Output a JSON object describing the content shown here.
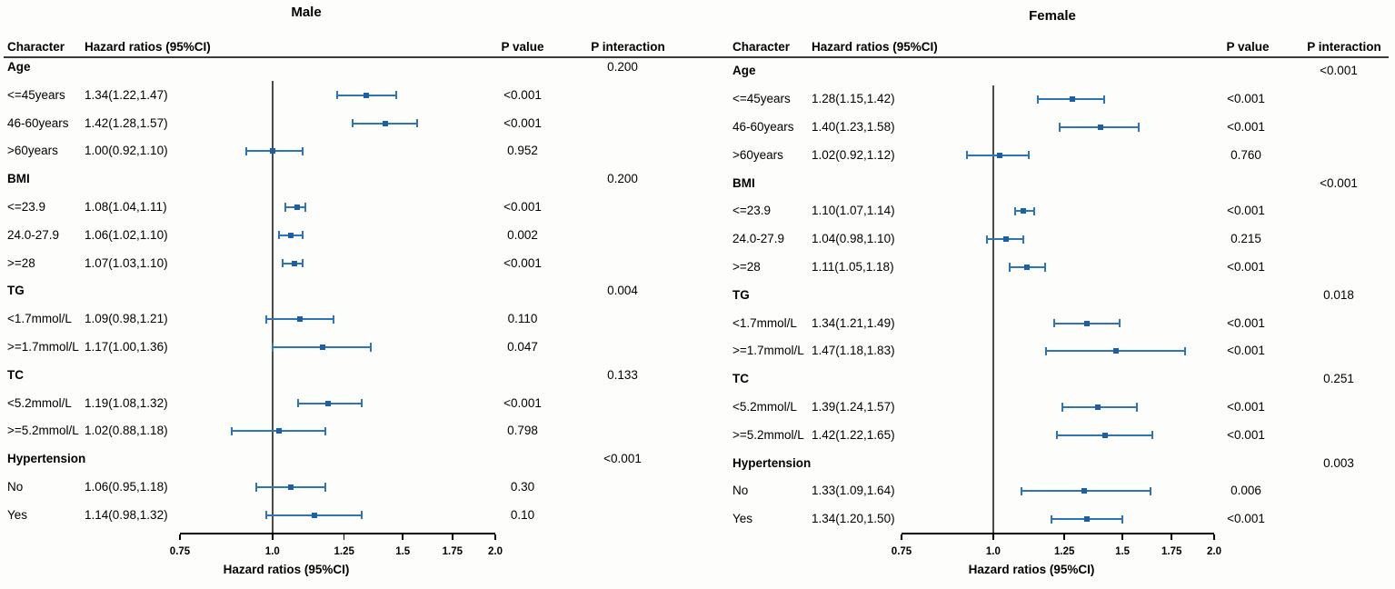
{
  "colors": {
    "bar": "#2e75b8",
    "marker": "#1c5fa8",
    "axis": "#000000",
    "refline": "#4a4a4a",
    "header_rule": "#3a3a3a",
    "text": "#000000",
    "background": "#fdfdfb"
  },
  "chart_data": [
    {
      "type": "forest",
      "panel": "left",
      "title": "Male",
      "columns": {
        "character": "Character",
        "hazard_ratios": "Hazard ratios (95%CI)",
        "p_value": "P value",
        "p_interaction": "P interaction"
      },
      "xlabel": "Hazard ratios (95%CI)",
      "xscale": "log",
      "xlim": [
        0.75,
        2.0
      ],
      "xticks": [
        "0.75",
        "1.0",
        "1.25",
        "1.5",
        "1.75",
        "2.0"
      ],
      "xtick_values": [
        0.75,
        1.0,
        1.25,
        1.5,
        1.75,
        2.0
      ],
      "refline": 1.0,
      "rows": [
        {
          "type": "group",
          "label": "Age",
          "p_interaction": "0.200"
        },
        {
          "type": "item",
          "label": "<=45years",
          "hr_text": "1.34(1.22,1.47)",
          "est": 1.34,
          "lo": 1.22,
          "hi": 1.47,
          "p_value": "<0.001"
        },
        {
          "type": "item",
          "label": "46-60years",
          "hr_text": "1.42(1.28,1.57)",
          "est": 1.42,
          "lo": 1.28,
          "hi": 1.57,
          "p_value": "<0.001"
        },
        {
          "type": "item",
          "label": ">60years",
          "hr_text": "1.00(0.92,1.10)",
          "est": 1.0,
          "lo": 0.92,
          "hi": 1.1,
          "p_value": "0.952"
        },
        {
          "type": "group",
          "label": "BMI",
          "p_interaction": "0.200"
        },
        {
          "type": "item",
          "label": "<=23.9",
          "hr_text": "1.08(1.04,1.11)",
          "est": 1.08,
          "lo": 1.04,
          "hi": 1.11,
          "p_value": "<0.001"
        },
        {
          "type": "item",
          "label": "24.0-27.9",
          "hr_text": "1.06(1.02,1.10)",
          "est": 1.06,
          "lo": 1.02,
          "hi": 1.1,
          "p_value": "0.002"
        },
        {
          "type": "item",
          "label": ">=28",
          "hr_text": "1.07(1.03,1.10)",
          "est": 1.07,
          "lo": 1.03,
          "hi": 1.1,
          "p_value": "<0.001"
        },
        {
          "type": "group",
          "label": "TG",
          "p_interaction": "0.004"
        },
        {
          "type": "item",
          "label": "<1.7mmol/L",
          "hr_text": "1.09(0.98,1.21)",
          "est": 1.09,
          "lo": 0.98,
          "hi": 1.21,
          "p_value": "0.110"
        },
        {
          "type": "item",
          "label": ">=1.7mmol/L",
          "hr_text": "1.17(1.00,1.36)",
          "est": 1.17,
          "lo": 1.0,
          "hi": 1.36,
          "p_value": "0.047"
        },
        {
          "type": "group",
          "label": "TC",
          "p_interaction": "0.133"
        },
        {
          "type": "item",
          "label": "<5.2mmol/L",
          "hr_text": "1.19(1.08,1.32)",
          "est": 1.19,
          "lo": 1.08,
          "hi": 1.32,
          "p_value": "<0.001"
        },
        {
          "type": "item",
          "label": ">=5.2mmol/L",
          "hr_text": "1.02(0.88,1.18)",
          "est": 1.02,
          "lo": 0.88,
          "hi": 1.18,
          "p_value": "0.798"
        },
        {
          "type": "group",
          "label": "Hypertension",
          "p_interaction": "<0.001"
        },
        {
          "type": "item",
          "label": "No",
          "hr_text": "1.06(0.95,1.18)",
          "est": 1.06,
          "lo": 0.95,
          "hi": 1.18,
          "p_value": "0.30"
        },
        {
          "type": "item",
          "label": "Yes",
          "hr_text": "1.14(0.98,1.32)",
          "est": 1.14,
          "lo": 0.98,
          "hi": 1.32,
          "p_value": "0.10"
        }
      ]
    },
    {
      "type": "forest",
      "panel": "right",
      "title": "Female",
      "columns": {
        "character": "Character",
        "hazard_ratios": "Hazard ratios (95%CI)",
        "p_value": "P value",
        "p_interaction": "P interaction"
      },
      "xlabel": "Hazard ratios (95%CI)",
      "xscale": "log",
      "xlim": [
        0.75,
        2.0
      ],
      "xticks": [
        "0.75",
        "1.0",
        "1.25",
        "1.5",
        "1.75",
        "2.0"
      ],
      "xtick_values": [
        0.75,
        1.0,
        1.25,
        1.5,
        1.75,
        2.0
      ],
      "refline": 1.0,
      "rows": [
        {
          "type": "group",
          "label": "Age",
          "p_interaction": "<0.001"
        },
        {
          "type": "item",
          "label": "<=45years",
          "hr_text": "1.28(1.15,1.42)",
          "est": 1.28,
          "lo": 1.15,
          "hi": 1.42,
          "p_value": "<0.001"
        },
        {
          "type": "item",
          "label": "46-60years",
          "hr_text": "1.40(1.23,1.58)",
          "est": 1.4,
          "lo": 1.23,
          "hi": 1.58,
          "p_value": "<0.001"
        },
        {
          "type": "item",
          "label": ">60years",
          "hr_text": "1.02(0.92,1.12)",
          "est": 1.02,
          "lo": 0.92,
          "hi": 1.12,
          "p_value": "0.760"
        },
        {
          "type": "group",
          "label": "BMI",
          "p_interaction": "<0.001"
        },
        {
          "type": "item",
          "label": "<=23.9",
          "hr_text": "1.10(1.07,1.14)",
          "est": 1.1,
          "lo": 1.07,
          "hi": 1.14,
          "p_value": "<0.001"
        },
        {
          "type": "item",
          "label": "24.0-27.9",
          "hr_text": "1.04(0.98,1.10)",
          "est": 1.04,
          "lo": 0.98,
          "hi": 1.1,
          "p_value": "0.215"
        },
        {
          "type": "item",
          "label": ">=28",
          "hr_text": "1.11(1.05,1.18)",
          "est": 1.11,
          "lo": 1.05,
          "hi": 1.18,
          "p_value": "<0.001"
        },
        {
          "type": "group",
          "label": "TG",
          "p_interaction": "0.018"
        },
        {
          "type": "item",
          "label": "<1.7mmol/L",
          "hr_text": "1.34(1.21,1.49)",
          "est": 1.34,
          "lo": 1.21,
          "hi": 1.49,
          "p_value": "<0.001"
        },
        {
          "type": "item",
          "label": ">=1.7mmol/L",
          "hr_text": "1.47(1.18,1.83)",
          "est": 1.47,
          "lo": 1.18,
          "hi": 1.83,
          "p_value": "<0.001"
        },
        {
          "type": "group",
          "label": "TC",
          "p_interaction": "0.251"
        },
        {
          "type": "item",
          "label": "<5.2mmol/L",
          "hr_text": "1.39(1.24,1.57)",
          "est": 1.39,
          "lo": 1.24,
          "hi": 1.57,
          "p_value": "<0.001"
        },
        {
          "type": "item",
          "label": ">=5.2mmol/L",
          "hr_text": "1.42(1.22,1.65)",
          "est": 1.42,
          "lo": 1.22,
          "hi": 1.65,
          "p_value": "<0.001"
        },
        {
          "type": "group",
          "label": "Hypertension",
          "p_interaction": "0.003"
        },
        {
          "type": "item",
          "label": "No",
          "hr_text": "1.33(1.09,1.64)",
          "est": 1.33,
          "lo": 1.09,
          "hi": 1.64,
          "p_value": "0.006"
        },
        {
          "type": "item",
          "label": "Yes",
          "hr_text": "1.34(1.20,1.50)",
          "est": 1.34,
          "lo": 1.2,
          "hi": 1.5,
          "p_value": "<0.001"
        }
      ]
    }
  ]
}
